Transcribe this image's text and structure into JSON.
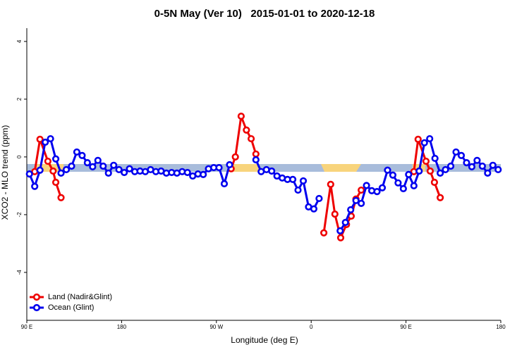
{
  "chart_data": {
    "type": "line",
    "title": "0-5N May (Ver 10)   2015-01-01 to 2020-12-18",
    "x_label": "Longitude (deg E)",
    "y_label": "XCO2 - MLO trend (ppm)",
    "xlim": [
      90,
      540
    ],
    "ylim": [
      -5.66,
      4.46
    ],
    "xticks": [
      {
        "value": 90,
        "label": "90 E"
      },
      180,
      {
        "value": 270,
        "label": "90 W"
      },
      {
        "value": 360,
        "label": "0"
      },
      {
        "value": 450,
        "label": "90 E"
      },
      {
        "value": 540,
        "label": "180"
      }
    ],
    "yticks": [
      -4,
      -2,
      0,
      2,
      4
    ],
    "legend": "bottom-left",
    "series": [
      {
        "name": "Land (Nadir&Glint)",
        "color": "#ee0000",
        "x": [
          97.5,
          102.5,
          110,
          115,
          117.5,
          122.5,
          null,
          284,
          288,
          293.5,
          298.5,
          303,
          307.5,
          null,
          372,
          378.5,
          382.5,
          388,
          393.5,
          398,
          402.5,
          407.5,
          null,
          457.5,
          461.5,
          469,
          473,
          477,
          482.5
        ],
        "values": [
          -0.51,
          0.61,
          -0.15,
          -0.49,
          -0.88,
          -1.41,
          null,
          -0.41,
          0,
          1.41,
          0.93,
          0.63,
          0.1,
          null,
          -2.63,
          -0.95,
          -1.98,
          -2.8,
          -2.34,
          -2.05,
          -1.46,
          -1.15,
          null,
          -0.51,
          0.61,
          -0.15,
          -0.49,
          -0.88,
          -1.41
        ]
      },
      {
        "name": "Ocean (Glint)",
        "color": "#0000ee",
        "x": [
          92.5,
          97.5,
          102.5,
          107.5,
          112.5,
          117.5,
          122.5,
          127.5,
          132.5,
          137.5,
          142.5,
          147.5,
          152.5,
          157.5,
          162.5,
          167.5,
          172.5,
          177.5,
          182.5,
          187.5,
          192.5,
          197.5,
          202.5,
          207.5,
          212.5,
          217.5,
          222.5,
          227.5,
          232.5,
          237.5,
          242.5,
          247.5,
          252.5,
          257.5,
          262.5,
          267.5,
          272.5,
          277.5,
          282.5,
          287.5,
          292.5,
          297.5,
          302.5,
          307.5,
          312.5,
          317.5,
          322.5,
          327.5,
          332.5,
          337.5,
          342.5,
          347.5,
          352.5,
          357.5,
          362.5,
          367.5,
          372.5,
          377.5,
          382.5,
          387.5,
          392.5,
          397.5,
          402.5,
          407.5,
          412.5,
          417.5,
          422.5,
          427.5,
          432.5,
          437.5,
          442.5,
          447.5,
          452.5,
          457.5,
          462.5,
          467.5,
          472.5,
          477.5,
          482.5,
          487.5,
          492.5,
          497.5,
          502.5,
          507.5,
          512.5,
          517.5,
          522.5,
          527.5,
          532.5,
          537.5
        ],
        "values": [
          -0.59,
          -1.02,
          -0.46,
          0.51,
          0.63,
          -0.07,
          -0.56,
          -0.44,
          -0.32,
          0.17,
          0.05,
          -0.2,
          -0.34,
          -0.12,
          -0.32,
          -0.56,
          -0.29,
          -0.44,
          -0.54,
          -0.41,
          -0.51,
          -0.49,
          -0.51,
          -0.44,
          -0.51,
          -0.49,
          -0.56,
          -0.54,
          -0.56,
          -0.51,
          -0.54,
          -0.66,
          -0.59,
          -0.61,
          -0.41,
          -0.37,
          -0.37,
          -0.93,
          -0.27,
          null,
          null,
          null,
          null,
          -0.1,
          -0.51,
          -0.44,
          -0.49,
          -0.66,
          -0.73,
          -0.78,
          -0.78,
          -1.15,
          -0.83,
          -1.73,
          -1.8,
          -1.44,
          null,
          null,
          null,
          -2.56,
          -2.27,
          -1.83,
          -1.51,
          -1.61,
          -0.99,
          -1.17,
          -1.2,
          -1.07,
          -0.46,
          -0.63,
          -0.9,
          -1.1,
          -0.61,
          -1.0,
          -0.49,
          0.49,
          0.63,
          -0.05,
          -0.56,
          -0.44,
          -0.32,
          0.17,
          0.05,
          -0.2,
          -0.34,
          -0.12,
          -0.32,
          -0.56,
          -0.29,
          -0.44
        ]
      }
    ]
  }
}
